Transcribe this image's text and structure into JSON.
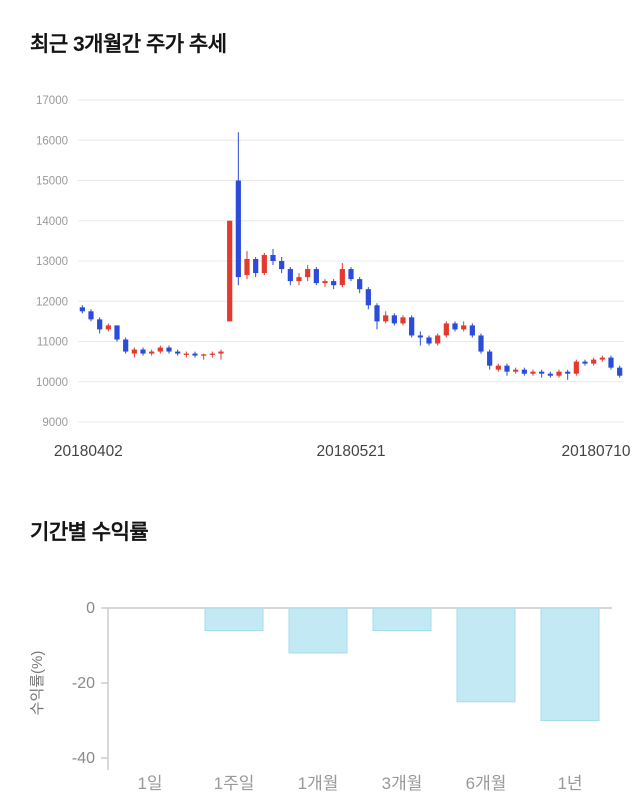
{
  "price_chart": {
    "title": "최근 3개월간 주가 추세"
  },
  "returns_chart": {
    "title": "기간별 수익률"
  },
  "chart_data": [
    {
      "type": "candlestick",
      "title": "최근 3개월간 주가 추세",
      "ylim": [
        9000,
        17000
      ],
      "yticks": [
        17000,
        16000,
        15000,
        14000,
        13000,
        12000,
        11000,
        10000,
        9000
      ],
      "xtick_labels": [
        "20180402",
        "20180521",
        "20180710"
      ],
      "up_color": "#e6392e",
      "down_color": "#2b4bdb",
      "grid_color": "#e8e8e8",
      "tick_label_color": "#9a9a9a",
      "xlabel_color": "#444444",
      "candles_ohlc": [
        [
          11850,
          11900,
          11700,
          11750
        ],
        [
          11750,
          11800,
          11500,
          11550
        ],
        [
          11550,
          11600,
          11200,
          11300
        ],
        [
          11300,
          11450,
          11250,
          11400
        ],
        [
          11400,
          11400,
          11000,
          11050
        ],
        [
          11050,
          11100,
          10700,
          10750
        ],
        [
          10700,
          10850,
          10600,
          10800
        ],
        [
          10800,
          10850,
          10650,
          10700
        ],
        [
          10700,
          10800,
          10650,
          10750
        ],
        [
          10750,
          10900,
          10700,
          10850
        ],
        [
          10850,
          10900,
          10700,
          10750
        ],
        [
          10750,
          10800,
          10650,
          10700
        ],
        [
          10700,
          10750,
          10600,
          10700
        ],
        [
          10700,
          10750,
          10600,
          10650
        ],
        [
          10650,
          10700,
          10550,
          10680
        ],
        [
          10680,
          10750,
          10600,
          10700
        ],
        [
          10700,
          10800,
          10550,
          10750
        ],
        [
          11500,
          14000,
          11500,
          14000
        ],
        [
          15000,
          16200,
          12400,
          12600
        ],
        [
          12650,
          13250,
          12550,
          13050
        ],
        [
          13050,
          13100,
          12600,
          12700
        ],
        [
          12700,
          13200,
          12650,
          13150
        ],
        [
          13150,
          13300,
          12900,
          13000
        ],
        [
          13000,
          13100,
          12700,
          12800
        ],
        [
          12800,
          12850,
          12400,
          12500
        ],
        [
          12500,
          12700,
          12400,
          12600
        ],
        [
          12600,
          12900,
          12500,
          12800
        ],
        [
          12800,
          12850,
          12400,
          12450
        ],
        [
          12450,
          12550,
          12350,
          12500
        ],
        [
          12500,
          12550,
          12300,
          12400
        ],
        [
          12400,
          12950,
          12350,
          12800
        ],
        [
          12800,
          12850,
          12500,
          12550
        ],
        [
          12550,
          12600,
          12200,
          12300
        ],
        [
          12300,
          12350,
          11800,
          11900
        ],
        [
          11900,
          11950,
          11300,
          11500
        ],
        [
          11500,
          11750,
          11450,
          11650
        ],
        [
          11650,
          11700,
          11400,
          11450
        ],
        [
          11450,
          11650,
          11400,
          11600
        ],
        [
          11600,
          11650,
          11100,
          11150
        ],
        [
          11150,
          11250,
          10900,
          11100
        ],
        [
          11100,
          11150,
          10900,
          10950
        ],
        [
          10950,
          11200,
          10900,
          11150
        ],
        [
          11150,
          11500,
          11100,
          11450
        ],
        [
          11450,
          11500,
          11250,
          11300
        ],
        [
          11300,
          11500,
          11250,
          11400
        ],
        [
          11400,
          11450,
          11100,
          11150
        ],
        [
          11150,
          11200,
          10700,
          10750
        ],
        [
          10750,
          10800,
          10300,
          10400
        ],
        [
          10300,
          10450,
          10250,
          10400
        ],
        [
          10400,
          10450,
          10150,
          10250
        ],
        [
          10250,
          10350,
          10200,
          10300
        ],
        [
          10300,
          10350,
          10150,
          10200
        ],
        [
          10200,
          10300,
          10150,
          10250
        ],
        [
          10250,
          10300,
          10100,
          10200
        ],
        [
          10200,
          10250,
          10100,
          10150
        ],
        [
          10150,
          10300,
          10100,
          10250
        ],
        [
          10250,
          10300,
          10050,
          10200
        ],
        [
          10200,
          10550,
          10150,
          10500
        ],
        [
          10500,
          10550,
          10400,
          10450
        ],
        [
          10450,
          10600,
          10400,
          10550
        ],
        [
          10550,
          10650,
          10500,
          10600
        ],
        [
          10600,
          10650,
          10300,
          10350
        ],
        [
          10350,
          10400,
          10100,
          10150
        ]
      ]
    },
    {
      "type": "bar",
      "title": "기간별 수익률",
      "ylabel": "수익률(%)",
      "categories": [
        "1일",
        "1주일",
        "1개월",
        "3개월",
        "6개월",
        "1년"
      ],
      "values": [
        0,
        -6,
        -12,
        -6,
        -25,
        -30
      ],
      "ylim": [
        -40,
        0
      ],
      "yticks": [
        0,
        -20,
        -40
      ],
      "bar_color": "#c3eaf4",
      "bar_border": "#a4dcea",
      "axis_color": "#cccccc",
      "tick_label_color": "#8a8a8a",
      "category_label_color": "#999999",
      "ylabel_color": "#777777"
    }
  ]
}
